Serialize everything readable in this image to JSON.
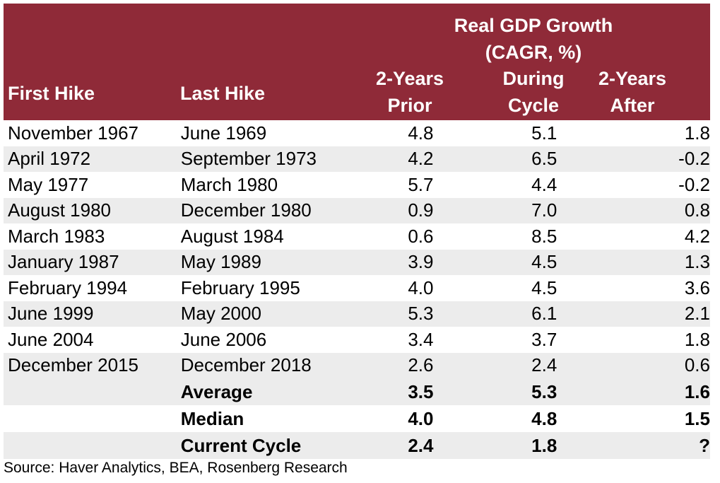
{
  "chart_data": {
    "type": "table",
    "title": "Real GDP Growth (CAGR, %)",
    "header": {
      "group_line1": "Real GDP Growth",
      "group_line2": "(CAGR, %)",
      "first_hike": "First Hike",
      "last_hike": "Last Hike",
      "prior_1": "2-Years",
      "prior_2": "Prior",
      "during_1": "During",
      "during_2": "Cycle",
      "after_1": "2-Years",
      "after_2": "After"
    },
    "columns": [
      "First Hike",
      "Last Hike",
      "2-Years Prior",
      "During Cycle",
      "2-Years After"
    ],
    "rows": [
      {
        "first": "November 1967",
        "last": "June 1969",
        "prior": "4.8",
        "during": "5.1",
        "after": "1.8"
      },
      {
        "first": "April 1972",
        "last": "September 1973",
        "prior": "4.2",
        "during": "6.5",
        "after": "-0.2"
      },
      {
        "first": "May 1977",
        "last": "March 1980",
        "prior": "5.7",
        "during": "4.4",
        "after": "-0.2"
      },
      {
        "first": "August 1980",
        "last": "December 1980",
        "prior": "0.9",
        "during": "7.0",
        "after": "0.8"
      },
      {
        "first": "March 1983",
        "last": "August 1984",
        "prior": "0.6",
        "during": "8.5",
        "after": "4.2"
      },
      {
        "first": "January 1987",
        "last": "May 1989",
        "prior": "3.9",
        "during": "4.5",
        "after": "1.3"
      },
      {
        "first": "February 1994",
        "last": "February 1995",
        "prior": "4.0",
        "during": "4.5",
        "after": "3.6"
      },
      {
        "first": "June 1999",
        "last": "May 2000",
        "prior": "5.3",
        "during": "6.1",
        "after": "2.1"
      },
      {
        "first": "June 2004",
        "last": "June 2006",
        "prior": "3.4",
        "during": "3.7",
        "after": "1.8"
      },
      {
        "first": "December 2015",
        "last": "December 2018",
        "prior": "2.6",
        "during": "2.4",
        "after": "0.6"
      }
    ],
    "summary": [
      {
        "label": "Average",
        "prior": "3.5",
        "during": "5.3",
        "after": "1.6"
      },
      {
        "label": "Median",
        "prior": "4.0",
        "during": "4.8",
        "after": "1.5"
      },
      {
        "label": "Current Cycle",
        "prior": "2.4",
        "during": "1.8",
        "after": "?"
      }
    ],
    "colors": {
      "header_bg": "#8f2a38",
      "header_text": "#ffffff",
      "row_shade": "#ececec"
    }
  },
  "source": "Source: Haver Analytics, BEA, Rosenberg Research"
}
